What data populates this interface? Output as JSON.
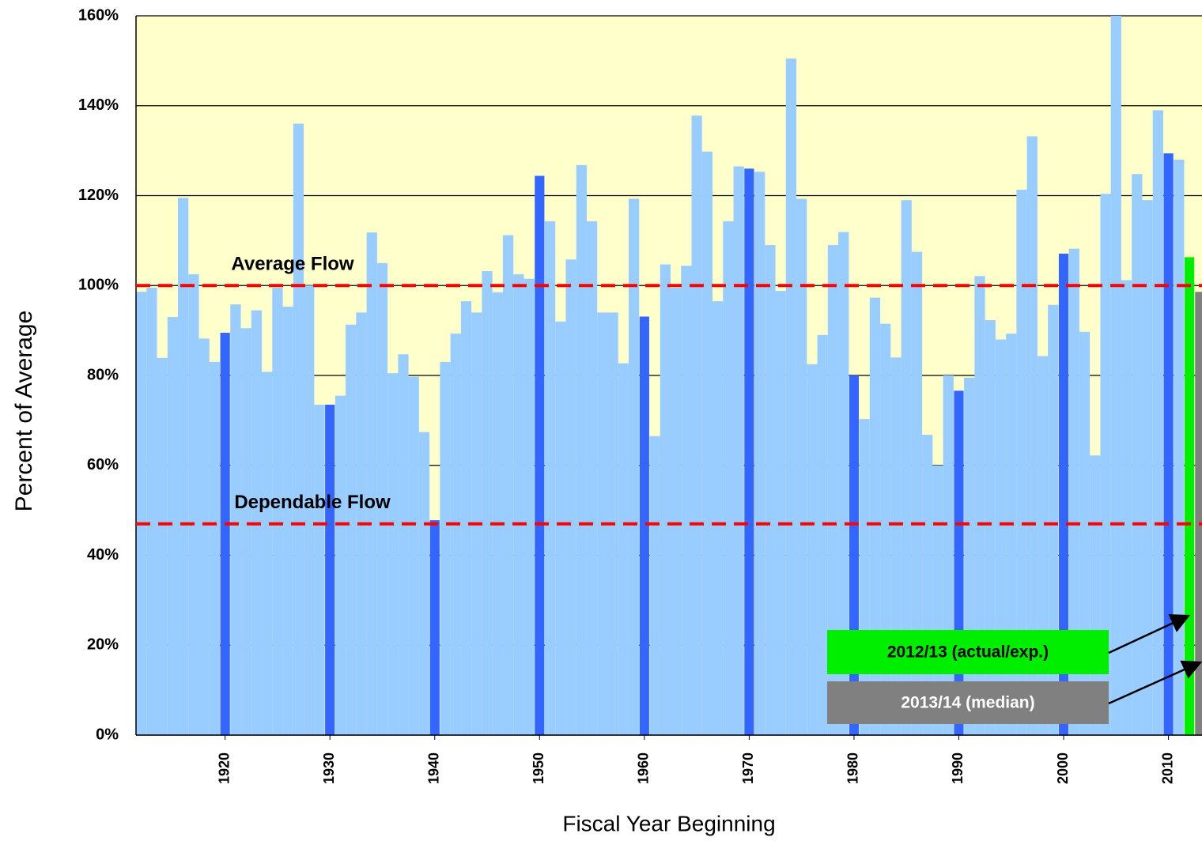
{
  "chart_data": {
    "type": "bar",
    "y_label": "Percent of Average",
    "x_label": "Fiscal Year Beginning",
    "ylim": [
      0,
      160
    ],
    "yticks": [
      {
        "value": 0,
        "label": "0%"
      },
      {
        "value": 20,
        "label": "20%"
      },
      {
        "value": 40,
        "label": "40%"
      },
      {
        "value": 60,
        "label": "60%"
      },
      {
        "value": 80,
        "label": "80%"
      },
      {
        "value": 100,
        "label": "100%"
      },
      {
        "value": 120,
        "label": "120%"
      },
      {
        "value": 140,
        "label": "140%"
      },
      {
        "value": 160,
        "label": "160%"
      }
    ],
    "xlim": [
      1911.5,
      2013.2
    ],
    "xticks": [
      1920,
      1930,
      1940,
      1950,
      1960,
      1970,
      1980,
      1990,
      2000,
      2010
    ],
    "grid": true,
    "background": "#ffffcc",
    "series": [
      {
        "color": "#99ccff",
        "x": [
          1912,
          1913,
          1914,
          1915,
          1916,
          1917,
          1918,
          1919,
          1921,
          1922,
          1923,
          1924,
          1925,
          1926,
          1927,
          1928,
          1929,
          1931,
          1932,
          1933,
          1934,
          1935,
          1936,
          1937,
          1938,
          1939,
          1941,
          1942,
          1943,
          1944,
          1945,
          1946,
          1947,
          1948,
          1949,
          1951,
          1952,
          1953,
          1954,
          1955,
          1956,
          1957,
          1958,
          1959,
          1961,
          1962,
          1963,
          1964,
          1965,
          1966,
          1967,
          1968,
          1969,
          1971,
          1972,
          1973,
          1974,
          1975,
          1976,
          1977,
          1978,
          1979,
          1981,
          1982,
          1983,
          1984,
          1985,
          1986,
          1987,
          1988,
          1989,
          1991,
          1992,
          1993,
          1994,
          1995,
          1996,
          1997,
          1998,
          1999,
          2001,
          2002,
          2003,
          2004,
          2005,
          2006,
          2007,
          2008,
          2009,
          2011
        ],
        "values": [
          98.6,
          99.5,
          83.9,
          93,
          119.5,
          102.5,
          88.2,
          83,
          95.8,
          90.5,
          94.5,
          80.8,
          99.5,
          95.3,
          136,
          100,
          73.5,
          75.5,
          91.3,
          94,
          111.8,
          105,
          80.5,
          84.7,
          79.7,
          67.4,
          83,
          89.3,
          96.5,
          94,
          103.2,
          98.5,
          111.2,
          102.5,
          101.5,
          114.3,
          92,
          105.8,
          126.8,
          114.3,
          94,
          94,
          82.7,
          119.3,
          66.5,
          104.7,
          99.5,
          104.4,
          137.8,
          129.8,
          96.5,
          114.3,
          126.5,
          125.3,
          109,
          98.8,
          150.5,
          119.3,
          82.5,
          89,
          109,
          111.9,
          70.3,
          97.3,
          91.5,
          84,
          119,
          107.5,
          66.8,
          60,
          80,
          79.5,
          102.1,
          92.3,
          88,
          89.3,
          121.3,
          133.2,
          84.3,
          95.7,
          108.2,
          89.7,
          62.2,
          120.4,
          160,
          101.2,
          124.8,
          119,
          139,
          128
        ]
      },
      {
        "color": "#3366ff",
        "x": [
          1920,
          1930,
          1940,
          1950,
          1960,
          1970,
          1980,
          1990,
          2000,
          2010
        ],
        "values": [
          89.5,
          73.5,
          47.8,
          124.4,
          93.1,
          126,
          80,
          76.6,
          107.1,
          129.4
        ]
      },
      {
        "color": "#00ee00",
        "x": [
          2012
        ],
        "values": [
          106.3
        ]
      },
      {
        "color": "#808080",
        "x": [
          2013
        ],
        "values": [
          98.6
        ]
      }
    ],
    "reference_lines": [
      {
        "label": "Average Flow",
        "value": 100,
        "color": "#ff0000"
      },
      {
        "label": "Dependable Flow",
        "value": 47,
        "color": "#ff0000"
      }
    ],
    "annotations": [
      {
        "text": "2012/13 (actual/exp.)",
        "color": "#00ee00"
      },
      {
        "text": "2013/14 (median)",
        "color": "#808080"
      }
    ]
  }
}
